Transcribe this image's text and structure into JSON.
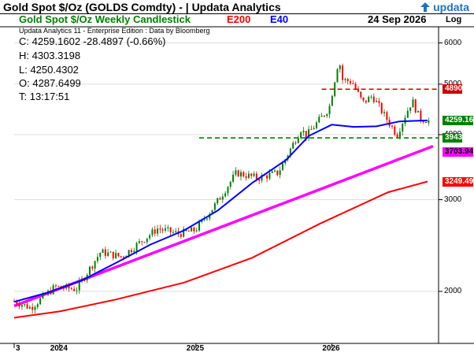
{
  "header": {
    "title": "Gold Spot  $/Oz (GOLDS Comdty) - | Updata Analytics",
    "logo_text": "updata",
    "chart_name": "Gold Spot  $/Oz Weekly Candlestick",
    "legend_e200": "E200",
    "legend_e40": "E40",
    "date": "24 Sep 2026",
    "scale": "Log",
    "subtitle": "Updata Analytics 11 - Enterprise Edition : Data by Bloomberg"
  },
  "ohlc": {
    "close": "C: 4259.1602  -28.4897 (-0.66%)",
    "high": "H: 4303.3198",
    "low": "L: 4250.4302",
    "open": "O: 4287.6499",
    "time": "T: 13:17:51"
  },
  "colors": {
    "e200": "#ff0000",
    "e40": "#0000ff",
    "trendline": "#ff00ff",
    "resistance": "#cc0000",
    "support": "#008000",
    "candle_up": "#008000",
    "candle_down": "#ff0000"
  },
  "tags": {
    "resistance": "4890",
    "last": "4259.16",
    "support": "3943",
    "trendline": "3703.94",
    "e200": "3249.49"
  },
  "chart_data": {
    "type": "line",
    "title": "Gold Spot  $/Oz Weekly Candlestick",
    "log_scale": true,
    "ylim": [
      1600,
      6400
    ],
    "y_ticks": [
      2000,
      3000,
      4000,
      5000,
      6000
    ],
    "x_labels": [
      "3",
      "2024",
      "2025",
      "2026"
    ],
    "x_range": [
      "2023-09-01",
      "2026-09-30"
    ],
    "series": [
      {
        "name": "E40",
        "points": [
          [
            "2023-09-01",
            1910
          ],
          [
            "2023-12-01",
            1990
          ],
          [
            "2024-03-01",
            2100
          ],
          [
            "2024-06-01",
            2270
          ],
          [
            "2024-09-01",
            2460
          ],
          [
            "2024-12-01",
            2620
          ],
          [
            "2025-03-01",
            2860
          ],
          [
            "2025-06-01",
            3230
          ],
          [
            "2025-09-01",
            3580
          ],
          [
            "2025-11-01",
            3980
          ],
          [
            "2026-01-01",
            4180
          ],
          [
            "2026-03-01",
            4140
          ],
          [
            "2026-05-01",
            4150
          ],
          [
            "2026-07-01",
            4240
          ],
          [
            "2026-09-15",
            4260
          ]
        ]
      },
      {
        "name": "E200",
        "points": [
          [
            "2023-09-01",
            1780
          ],
          [
            "2024-01-01",
            1830
          ],
          [
            "2024-06-01",
            1930
          ],
          [
            "2024-12-01",
            2080
          ],
          [
            "2025-06-01",
            2320
          ],
          [
            "2025-12-01",
            2700
          ],
          [
            "2026-06-01",
            3100
          ],
          [
            "2026-09-15",
            3250
          ]
        ]
      }
    ],
    "price_path": [
      [
        "2023-09-01",
        1915
      ],
      [
        "2023-10-15",
        1860
      ],
      [
        "2023-12-20",
        2040
      ],
      [
        "2024-02-15",
        2020
      ],
      [
        "2024-04-20",
        2380
      ],
      [
        "2024-06-15",
        2330
      ],
      [
        "2024-09-20",
        2640
      ],
      [
        "2024-11-15",
        2580
      ],
      [
        "2024-12-30",
        2620
      ],
      [
        "2025-02-20",
        2920
      ],
      [
        "2025-04-20",
        3380
      ],
      [
        "2025-06-15",
        3300
      ],
      [
        "2025-08-10",
        3380
      ],
      [
        "2025-10-10",
        4100
      ],
      [
        "2025-10-25",
        3980
      ],
      [
        "2025-12-25",
        4500
      ],
      [
        "2026-01-20",
        5600
      ],
      [
        "2026-01-30",
        5100
      ],
      [
        "2026-02-25",
        5050
      ],
      [
        "2026-03-25",
        4600
      ],
      [
        "2026-04-20",
        4750
      ],
      [
        "2026-05-20",
        4380
      ],
      [
        "2026-06-25",
        4000
      ],
      [
        "2026-07-20",
        4400
      ],
      [
        "2026-08-05",
        4650
      ],
      [
        "2026-08-25",
        4300
      ],
      [
        "2026-09-20",
        4259
      ]
    ],
    "lines": {
      "resistance": 4890,
      "support": 3943,
      "trendline": [
        [
          "2023-09-01",
          1875
        ],
        [
          "2026-09-30",
          3800
        ]
      ]
    },
    "last_price": 4259.1602
  }
}
